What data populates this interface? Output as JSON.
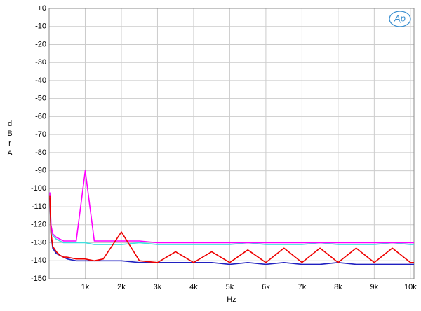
{
  "chart_data": {
    "type": "line",
    "y_label": "dBr A",
    "x_label": "Hz",
    "logo": "Ap",
    "x": [
      20,
      50,
      100,
      200,
      300,
      400,
      500,
      750,
      1000,
      1250,
      1500,
      2000,
      2500,
      3000,
      3500,
      4000,
      4500,
      5000,
      5500,
      6000,
      6500,
      7000,
      7500,
      8000,
      8500,
      9000,
      9500,
      10000,
      10100
    ],
    "series": [
      {
        "color": "#40e0e0",
        "values": [
          -102,
          -120,
          -126,
          -128,
          -129,
          -130,
          -130,
          -130,
          -130,
          -131,
          -131,
          -131,
          -130,
          -131,
          -131,
          -131,
          -131,
          -131,
          -130,
          -131,
          -131,
          -131,
          -130,
          -131,
          -131,
          -131,
          -130,
          -131,
          -131
        ]
      },
      {
        "color": "#ff00ff",
        "values": [
          -102,
          -120,
          -125,
          -127,
          -128,
          -129,
          -129,
          -129,
          -90,
          -129,
          -129,
          -129,
          -129,
          -130,
          -130,
          -130,
          -130,
          -130,
          -130,
          -130,
          -130,
          -130,
          -130,
          -130,
          -130,
          -130,
          -130,
          -130,
          -130
        ]
      },
      {
        "color": "#2020c0",
        "values": [
          -105,
          -125,
          -133,
          -136,
          -137,
          -138,
          -139,
          -140,
          -140,
          -140,
          -140,
          -140,
          -141,
          -141,
          -141,
          -141,
          -141,
          -142,
          -141,
          -142,
          -141,
          -142,
          -142,
          -141,
          -142,
          -142,
          -142,
          -142,
          -142
        ]
      },
      {
        "color": "#ee0000",
        "values": [
          -104,
          -124,
          -132,
          -135,
          -137,
          -138,
          -138,
          -139,
          -139,
          -140,
          -139,
          -124,
          -140,
          -141,
          -135,
          -141,
          -135,
          -141,
          -134,
          -141,
          -133,
          -141,
          -133,
          -141,
          -133,
          -141,
          -133,
          -141,
          -141
        ]
      }
    ],
    "xlim": [
      0,
      10100
    ],
    "ylim": [
      -150,
      0
    ],
    "xticks": [
      {
        "value": 1000,
        "label": "1k"
      },
      {
        "value": 2000,
        "label": "2k"
      },
      {
        "value": 3000,
        "label": "3k"
      },
      {
        "value": 4000,
        "label": "4k"
      },
      {
        "value": 5000,
        "label": "5k"
      },
      {
        "value": 6000,
        "label": "6k"
      },
      {
        "value": 7000,
        "label": "7k"
      },
      {
        "value": 8000,
        "label": "8k"
      },
      {
        "value": 9000,
        "label": "9k"
      },
      {
        "value": 10000,
        "label": "10k"
      }
    ],
    "yticks": [
      {
        "value": 0,
        "label": "+0"
      },
      -10,
      -20,
      -30,
      -40,
      -50,
      -60,
      -70,
      -80,
      -90,
      -100,
      -110,
      -120,
      -130,
      -140,
      -150
    ],
    "grid": true
  }
}
